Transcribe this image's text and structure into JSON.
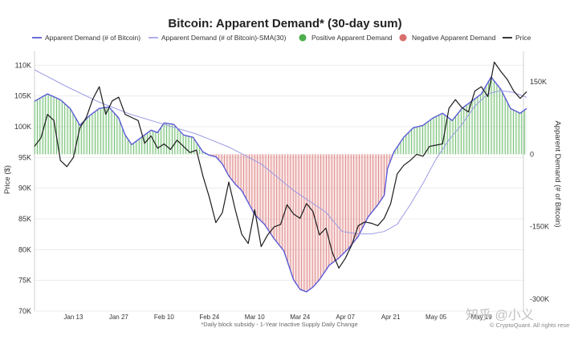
{
  "chart_data": {
    "type": "line",
    "title": "Bitcoin: Apparent Demand* (30-day sum)",
    "legend": [
      {
        "label": "Apparent Demand (# of Bitcoin)",
        "color": "#5b5bd6",
        "kind": "line"
      },
      {
        "label": "Apparent Demand (# of Bitcoin)-SMA(30)",
        "color": "#a7a7e6",
        "kind": "line"
      },
      {
        "label": "Positive Apparent Demand",
        "color": "#4cae4c",
        "kind": "dot"
      },
      {
        "label": "Negative Apparent Demand",
        "color": "#d9706e",
        "kind": "dot"
      },
      {
        "label": "Price",
        "color": "#222222",
        "kind": "line"
      }
    ],
    "legend_position": "top",
    "left_axis": {
      "label": "Price ($)",
      "ticks": [
        "110K",
        "105K",
        "100K",
        "95K",
        "90K",
        "85K",
        "80K",
        "75K",
        "70K"
      ],
      "values": [
        110000,
        105000,
        100000,
        95000,
        90000,
        85000,
        80000,
        75000,
        70000
      ],
      "ylim": [
        70000,
        112000
      ]
    },
    "right_axis": {
      "label": "Apparent Demand (# of Bitcoin)",
      "ticks": [
        "150K",
        "0",
        "-150K",
        "-300K"
      ],
      "values": [
        150000,
        0,
        -150000,
        -300000
      ],
      "ylim": [
        -325000,
        210000
      ]
    },
    "x_axis": {
      "ticks": [
        "Jan 13",
        "Jan 27",
        "Feb 10",
        "Feb 24",
        "Mar 10",
        "Mar 24",
        "Apr 07",
        "Apr 21",
        "May 05",
        "May 19"
      ],
      "tick_days": [
        12,
        26,
        40,
        54,
        68,
        82,
        96,
        110,
        124,
        138
      ],
      "start_date": "2025-01-02",
      "end_date": "2025-06-02"
    },
    "grid": true,
    "series": [
      {
        "name": "Apparent Demand (# of Bitcoin)",
        "x_days": [
          0,
          4,
          8,
          11,
          14,
          17,
          20,
          23,
          26,
          28,
          30,
          33,
          36,
          38,
          40,
          43,
          46,
          49,
          52,
          54,
          56,
          58,
          60,
          62,
          64,
          66,
          68,
          71,
          74,
          77,
          80,
          82,
          84,
          86,
          88,
          91,
          94,
          97,
          100,
          103,
          106,
          108,
          109,
          111,
          114,
          117,
          120,
          123,
          126,
          129,
          132,
          135,
          138,
          141,
          144,
          147,
          150,
          152
        ],
        "values": [
          110000,
          125000,
          113000,
          95000,
          60000,
          80000,
          95000,
          98000,
          75000,
          40000,
          20000,
          35000,
          50000,
          45000,
          65000,
          62000,
          40000,
          35000,
          5000,
          -2000,
          -5000,
          -20000,
          -45000,
          -62000,
          -75000,
          -100000,
          -125000,
          -145000,
          -175000,
          -200000,
          -260000,
          -280000,
          -285000,
          -275000,
          -260000,
          -230000,
          -215000,
          -195000,
          -170000,
          -130000,
          -105000,
          -85000,
          -30000,
          5000,
          35000,
          55000,
          60000,
          75000,
          85000,
          70000,
          95000,
          110000,
          125000,
          160000,
          135000,
          95000,
          85000,
          95000
        ]
      },
      {
        "name": "Apparent Demand (# of Bitcoin)-SMA(30)",
        "x_days": [
          0,
          10,
          20,
          30,
          40,
          50,
          60,
          70,
          80,
          90,
          95,
          100,
          104,
          108,
          112,
          116,
          120,
          124,
          128,
          132,
          136,
          140,
          144,
          148,
          152
        ],
        "values": [
          175000,
          140000,
          108000,
          82000,
          62000,
          42000,
          15000,
          -20000,
          -75000,
          -120000,
          -160000,
          -165000,
          -165000,
          -160000,
          -145000,
          -105000,
          -60000,
          -10000,
          30000,
          62000,
          100000,
          125000,
          132000,
          128000,
          118000
        ]
      },
      {
        "name": "Price",
        "x_days": [
          0,
          2,
          4,
          6,
          8,
          10,
          12,
          14,
          16,
          18,
          20,
          22,
          24,
          26,
          28,
          30,
          32,
          34,
          36,
          38,
          40,
          42,
          44,
          46,
          48,
          50,
          52,
          54,
          56,
          58,
          60,
          62,
          64,
          66,
          68,
          70,
          72,
          74,
          76,
          78,
          80,
          82,
          84,
          86,
          88,
          90,
          92,
          94,
          96,
          98,
          100,
          102,
          104,
          106,
          108,
          110,
          112,
          114,
          116,
          118,
          120,
          122,
          124,
          126,
          128,
          130,
          132,
          134,
          136,
          138,
          140,
          142,
          144,
          146,
          148,
          150,
          152
        ],
        "values": [
          96800,
          98200,
          102000,
          101000,
          94500,
          93500,
          95000,
          99800,
          101500,
          104500,
          106500,
          102000,
          104200,
          104800,
          102000,
          101500,
          101000,
          97300,
          98500,
          96500,
          97200,
          96300,
          97800,
          96800,
          95800,
          96200,
          92000,
          88500,
          84400,
          86000,
          91000,
          86500,
          82500,
          81000,
          86500,
          80500,
          82400,
          83700,
          84100,
          87300,
          85800,
          85100,
          87500,
          86200,
          82400,
          83500,
          79500,
          77000,
          78600,
          80800,
          83900,
          84500,
          84300,
          83900,
          85100,
          87500,
          92300,
          93700,
          94500,
          95500,
          95200,
          96800,
          97000,
          97200,
          103000,
          104400,
          103100,
          102400,
          105800,
          106500,
          104900,
          110500,
          109000,
          107700,
          105800,
          104600,
          105700
        ]
      }
    ],
    "footnote": "*Daily block subsidy - 1-Year Inactive Supply Daily Change",
    "source_mark": "© CryptoQuant. All rights reserved",
    "watermark": "知乎 @小义"
  }
}
